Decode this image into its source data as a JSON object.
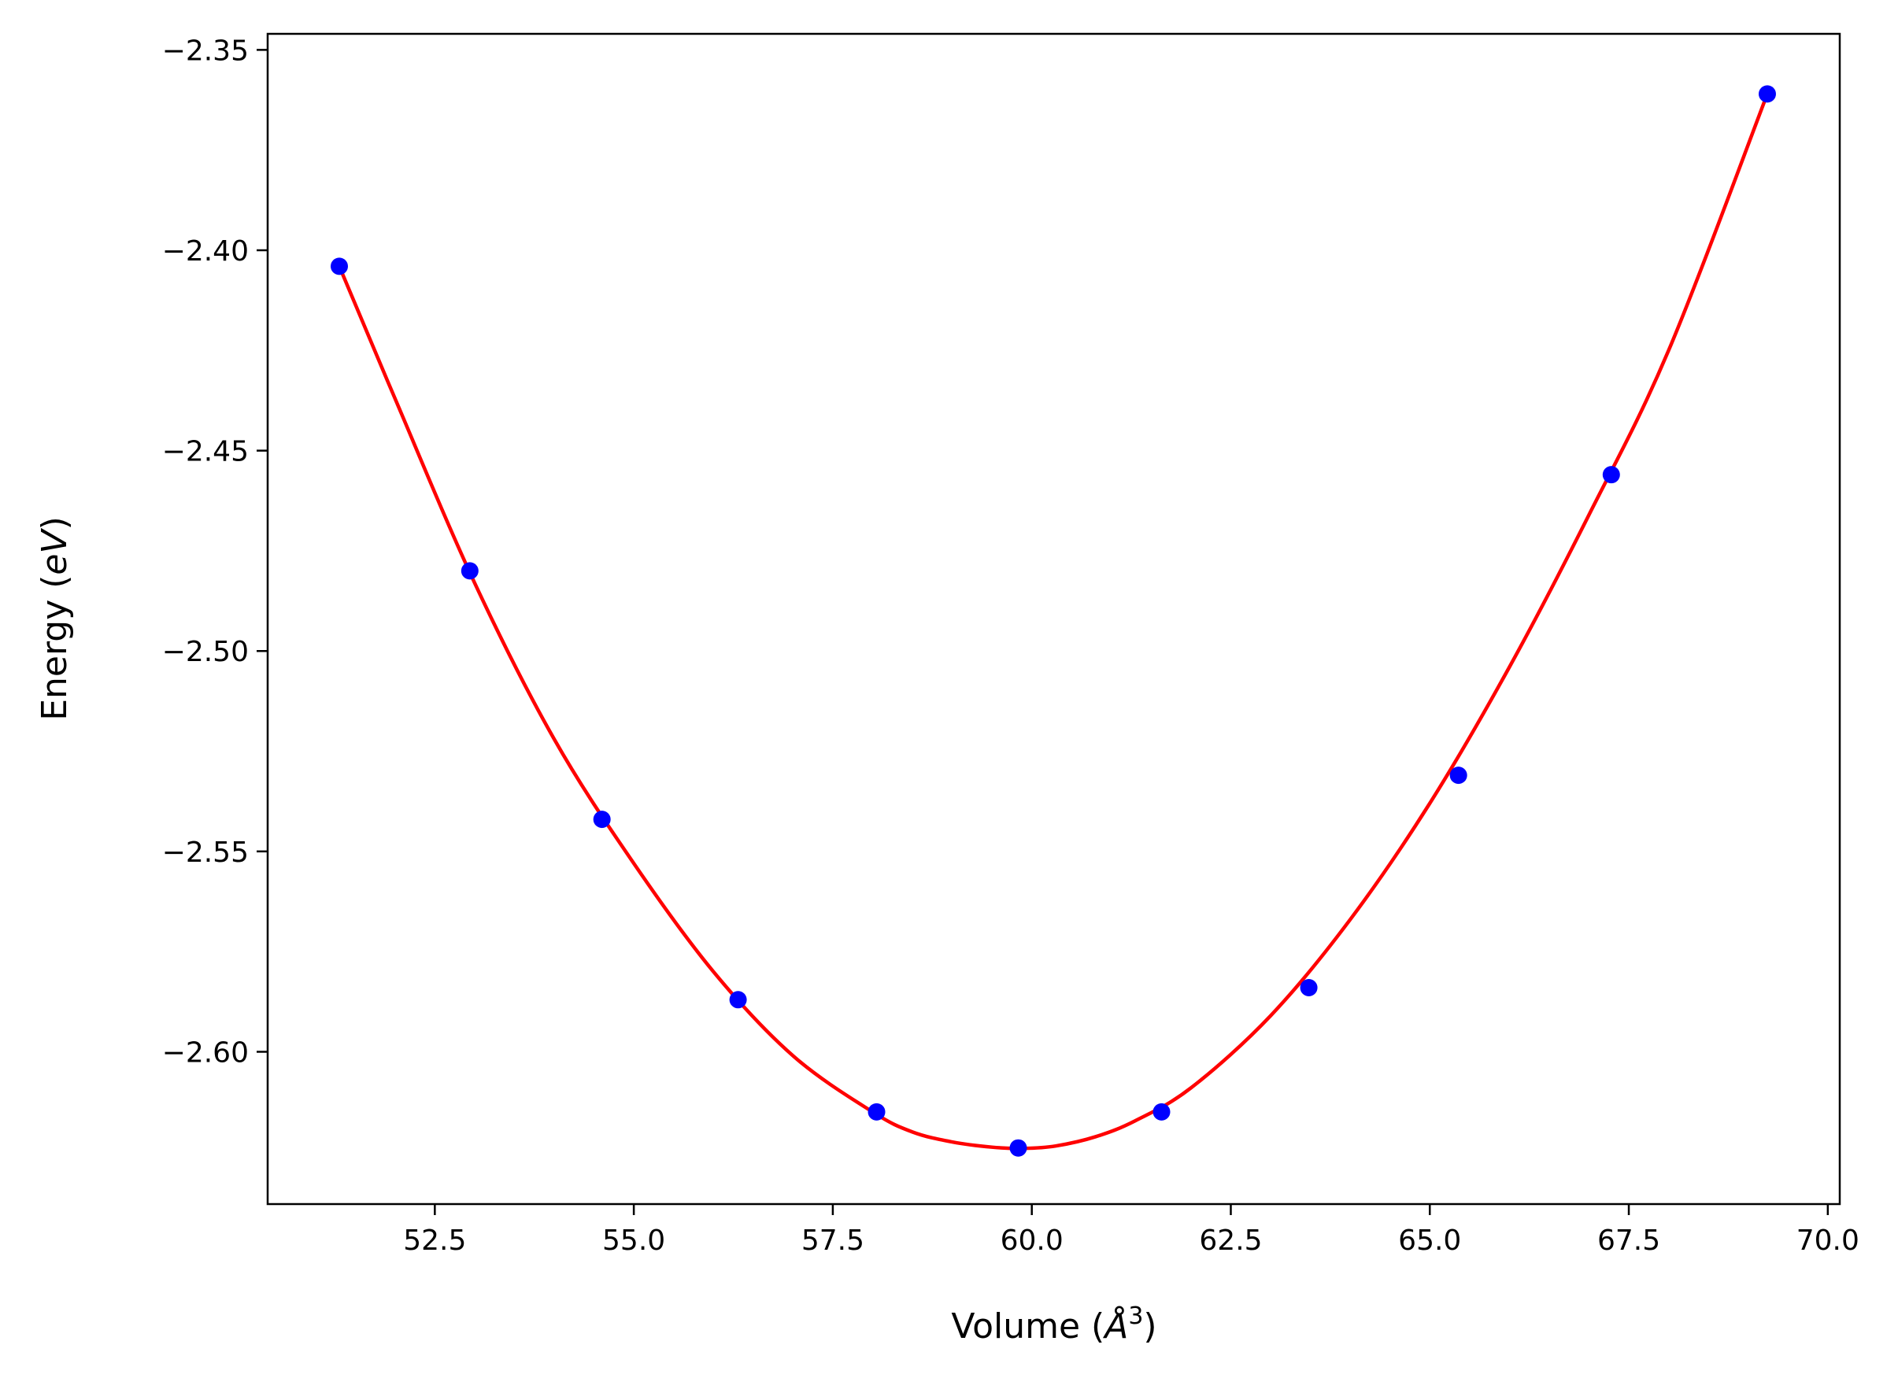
{
  "chart_data": {
    "type": "scatter",
    "xlabel": "Volume",
    "xlabel_unit": "Å",
    "xlabel_unit_exp": "3",
    "ylabel": "Energy",
    "ylabel_unit": "eV",
    "xlim": [
      50.4,
      70.15
    ],
    "ylim": [
      -2.638,
      -2.346
    ],
    "x_ticks": [
      52.5,
      55.0,
      57.5,
      60.0,
      62.5,
      65.0,
      67.5,
      70.0
    ],
    "x_tick_labels": [
      "52.5",
      "55.0",
      "57.5",
      "60.0",
      "62.5",
      "65.0",
      "67.5",
      "70.0"
    ],
    "y_ticks": [
      -2.35,
      -2.4,
      -2.45,
      -2.5,
      -2.55,
      -2.6
    ],
    "y_tick_labels": [
      "−2.35",
      "−2.40",
      "−2.45",
      "−2.50",
      "−2.55",
      "−2.60"
    ],
    "grid": false,
    "series": [
      {
        "kind": "points",
        "color": "#0000ff",
        "x": [
          51.3,
          52.94,
          54.6,
          56.31,
          58.05,
          59.83,
          61.63,
          63.48,
          65.36,
          67.28,
          69.24
        ],
        "y": [
          -2.404,
          -2.48,
          -2.542,
          -2.587,
          -2.615,
          -2.624,
          -2.615,
          -2.584,
          -2.531,
          -2.456,
          -2.361
        ]
      },
      {
        "kind": "fit-line",
        "color": "#ff0000",
        "x": [
          51.3,
          52.0,
          53.0,
          54.0,
          55.0,
          56.0,
          57.0,
          58.0,
          58.5,
          59.0,
          59.5,
          59.9,
          60.3,
          60.8,
          61.3,
          62.0,
          63.0,
          64.0,
          65.0,
          66.0,
          67.0,
          68.0,
          69.24
        ],
        "y": [
          -2.404,
          -2.437,
          -2.483,
          -2.522,
          -2.553,
          -2.58,
          -2.601,
          -2.615,
          -2.62,
          -2.6225,
          -2.6238,
          -2.6241,
          -2.6235,
          -2.6212,
          -2.6172,
          -2.609,
          -2.591,
          -2.567,
          -2.538,
          -2.504,
          -2.466,
          -2.425,
          -2.361
        ]
      }
    ]
  }
}
